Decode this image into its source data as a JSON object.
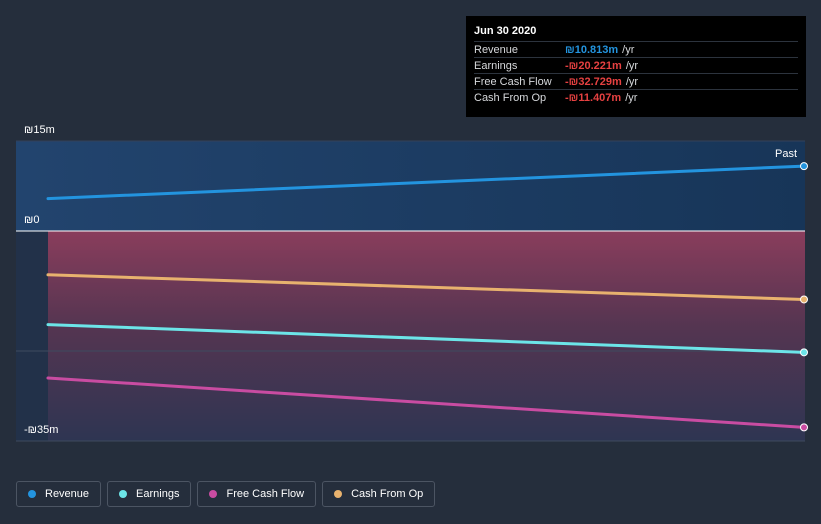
{
  "tooltip": {
    "date": "Jun 30 2020",
    "rows": [
      {
        "name": "Revenue",
        "value": "₪10.813m",
        "unit": "/yr",
        "color": "#2394df"
      },
      {
        "name": "Earnings",
        "value": "-₪20.221m",
        "unit": "/yr",
        "color": "#e64141"
      },
      {
        "name": "Free Cash Flow",
        "value": "-₪32.729m",
        "unit": "/yr",
        "color": "#e64141"
      },
      {
        "name": "Cash From Op",
        "value": "-₪11.407m",
        "unit": "/yr",
        "color": "#e64141"
      }
    ]
  },
  "axis": {
    "top_label": "₪15m",
    "zero_label": "₪0",
    "bottom_label": "-₪35m"
  },
  "past_label": "Past",
  "legend": [
    {
      "label": "Revenue",
      "color": "#2394df"
    },
    {
      "label": "Earnings",
      "color": "#6ce5e8"
    },
    {
      "label": "Free Cash Flow",
      "color": "#c94ca2"
    },
    {
      "label": "Cash From Op",
      "color": "#e8b26e"
    }
  ],
  "chart_data": {
    "type": "line",
    "ylim": [
      -35,
      15
    ],
    "y_unit": "₪m",
    "x": [
      "start",
      "Jun 30 2020"
    ],
    "series": [
      {
        "name": "Revenue",
        "color": "#2394df",
        "values": [
          5.4,
          10.813
        ]
      },
      {
        "name": "Earnings",
        "color": "#6ce5e8",
        "values": [
          -15.6,
          -20.221
        ]
      },
      {
        "name": "Free Cash Flow",
        "color": "#c94ca2",
        "values": [
          -24.5,
          -32.729
        ]
      },
      {
        "name": "Cash From Op",
        "color": "#e8b26e",
        "values": [
          -7.3,
          -11.407
        ]
      }
    ]
  }
}
